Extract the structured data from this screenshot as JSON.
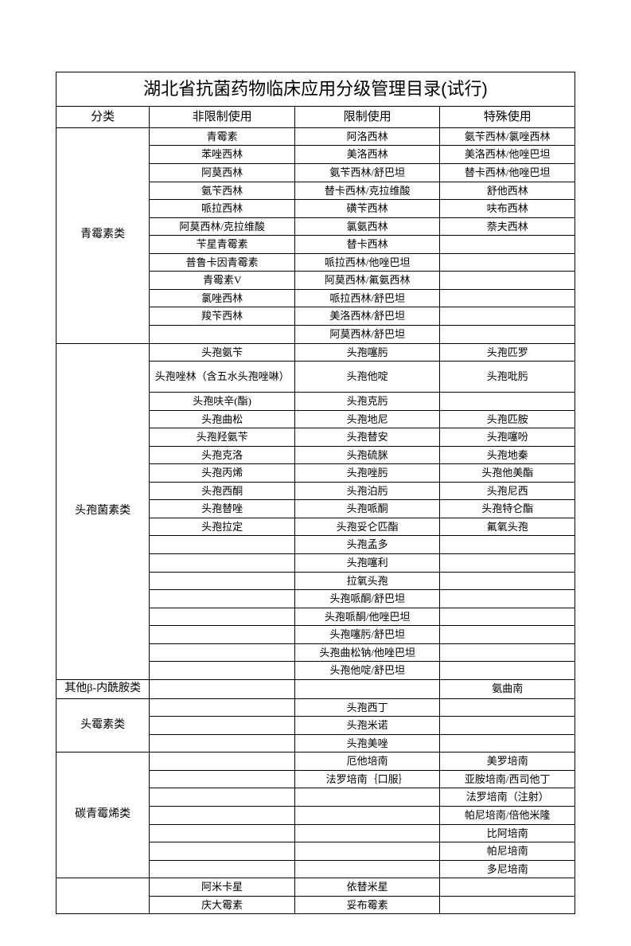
{
  "title": "湖北省抗菌药物临床应用分级管理目录(试行)",
  "headers": [
    "分类",
    "非限制使用",
    "限制使用",
    "特殊使用"
  ],
  "col_widths": [
    "18%",
    "28%",
    "28%",
    "26%"
  ],
  "groups": [
    {
      "category": "青霉素类",
      "rows": [
        [
          "青霉素",
          "阿洛西林",
          "氨苄西林/氯唑西林"
        ],
        [
          "苯唑西林",
          "美洛西林",
          "美洛西林/他唑巴坦"
        ],
        [
          "阿莫西林",
          "氨苄西林/舒巴坦",
          "替卡西林/他唑巴坦"
        ],
        [
          "氨苄西林",
          "替卡西林/克拉维酸",
          "舒他西林"
        ],
        [
          "哌拉西林",
          "磺苄西林",
          "呋布西林"
        ],
        [
          "阿莫西林/克拉维酸",
          "氯氨西林",
          "萘夫西林"
        ],
        [
          "苄星青霉素",
          "替卡西林",
          ""
        ],
        [
          "普鲁卡因青霉素",
          "哌拉西林/他唑巴坦",
          ""
        ],
        [
          "青霉素V",
          "阿莫西林/氟氨西林",
          ""
        ],
        [
          "氯唑西林",
          "哌拉西林/舒巴坦",
          ""
        ],
        [
          "羧苄西林",
          "美洛西林/舒巴坦",
          ""
        ],
        [
          "",
          "阿莫西林/舒巴坦",
          ""
        ]
      ]
    },
    {
      "category": "头孢菌素类",
      "rows": [
        [
          "头孢氨苄",
          "头孢噻肟",
          "头孢匹罗"
        ],
        [
          "头孢唑林（含五水头孢唑啉）",
          "头孢他啶",
          "头孢吡肟"
        ],
        [
          "头孢呋辛(酯)",
          "头孢克肟",
          ""
        ],
        [
          "头孢曲松",
          "头孢地尼",
          "头孢匹胺"
        ],
        [
          "头孢羟氨苄",
          "头孢替安",
          "头孢噻吩"
        ],
        [
          "头孢克洛",
          "头孢硫脒",
          "头孢地秦"
        ],
        [
          "头孢丙烯",
          "头孢唑肟",
          "头孢他美酯"
        ],
        [
          "头孢西酮",
          "头孢泊肟",
          "头孢尼西"
        ],
        [
          "头孢替唑",
          "头孢哌酮",
          "头孢特仑酯"
        ],
        [
          "头孢拉定",
          "头孢妥仑匹酯",
          "氟氧头孢"
        ],
        [
          "",
          "头孢孟多",
          ""
        ],
        [
          "",
          "头孢噻利",
          ""
        ],
        [
          "",
          "拉氧头孢",
          ""
        ],
        [
          "",
          "头孢哌酮/舒巴坦",
          ""
        ],
        [
          "",
          "头孢哌酮/他唑巴坦",
          ""
        ],
        [
          "",
          "头孢噻肟/舒巴坦",
          ""
        ],
        [
          "",
          "头孢曲松钠/他唑巴坦",
          ""
        ],
        [
          "",
          "头孢他啶/舒巴坦",
          ""
        ]
      ]
    },
    {
      "category": "其他β-内酰胺类",
      "rows": [
        [
          "",
          "",
          "氨曲南"
        ]
      ]
    },
    {
      "category": "头霉素类",
      "rows": [
        [
          "",
          "头孢西丁",
          ""
        ],
        [
          "",
          "头孢米诺",
          ""
        ],
        [
          "",
          "头孢美唑",
          ""
        ]
      ]
    },
    {
      "category": "碳青霉烯类",
      "rows": [
        [
          "",
          "厄他培南",
          "美罗培南"
        ],
        [
          "",
          "法罗培南｛口服｝",
          "亚胺培南/西司他丁"
        ],
        [
          "",
          "",
          "法罗培南（注射）"
        ],
        [
          "",
          "",
          "帕尼培南/倍他米隆"
        ],
        [
          "",
          "",
          "比阿培南"
        ],
        [
          "",
          "",
          "帕尼培南"
        ],
        [
          "",
          "",
          "多尼培南"
        ]
      ]
    },
    {
      "category": "",
      "rows": [
        [
          "阿米卡星",
          "依替米星",
          ""
        ],
        [
          "庆大霉素",
          "妥布霉素",
          ""
        ]
      ]
    }
  ],
  "special_rows": {
    "multiline_row_indices": [
      [
        1,
        1
      ]
    ]
  }
}
